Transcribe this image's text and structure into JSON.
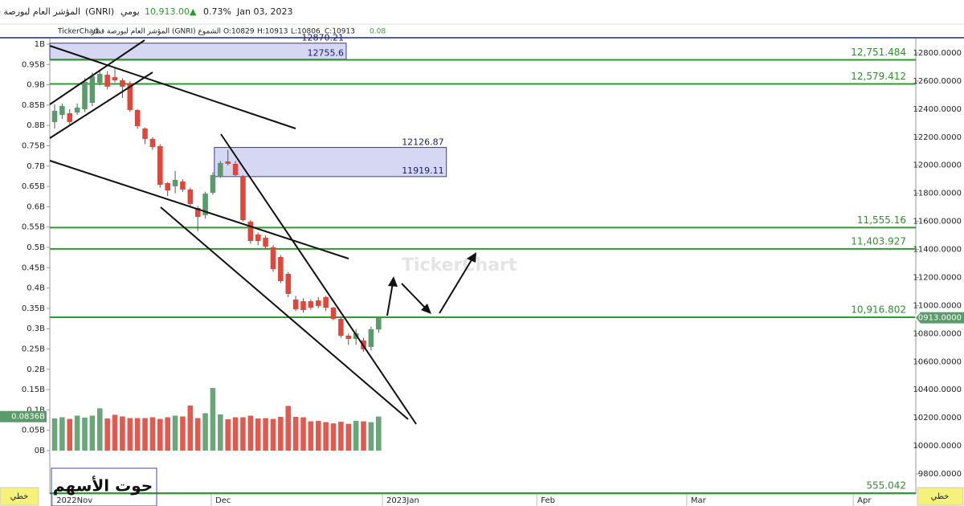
{
  "header": {
    "name": "المؤشر العام لبورصة قطر",
    "symbol": "(GNRI)",
    "period": "يومي",
    "price": "10,913.00",
    "arrow": "▲",
    "change": "0.73%",
    "date": "Jan 03, 2023"
  },
  "legend": {
    "brand": "TickerChart",
    "title": "المؤشر العام لبورصة قطر (GNRI) الشموع",
    "open": "O:10829",
    "high": "H:10913",
    "low": "L:10806",
    "close": "C:10913",
    "extra": "0.08"
  },
  "chart_data": {
    "type": "candlestick",
    "categories": [
      null,
      null,
      null,
      null,
      null,
      null,
      null,
      null,
      null,
      null,
      null,
      null,
      null,
      null,
      null,
      null,
      null,
      null,
      null,
      null,
      null,
      null,
      null,
      null,
      null,
      null,
      null,
      null,
      null,
      null,
      null,
      null,
      null,
      null,
      null,
      null,
      null,
      null,
      null,
      null,
      null,
      null,
      null,
      null
    ],
    "open": [
      12308,
      12359,
      12371,
      12376,
      12399,
      12445,
      12588,
      12645,
      12628,
      12605,
      12582,
      12394,
      12262,
      12188,
      12136,
      11873,
      11850,
      11884,
      11827,
      11695,
      11644,
      11804,
      11919,
      12027,
      12010,
      11919,
      11598,
      11506,
      11483,
      11415,
      11346,
      11226,
      11043,
      11031,
      11031,
      11037,
      11060,
      10985,
      10905,
      10785,
      10762,
      10751,
      10705,
      10829
    ],
    "high": [
      12434,
      12440,
      12400,
      12440,
      12620,
      12660,
      12680,
      12670,
      12700,
      12620,
      12600,
      12400,
      12270,
      12200,
      12150,
      11880,
      11960,
      11900,
      11840,
      11710,
      11810,
      11950,
      12030,
      12110,
      12030,
      11930,
      11610,
      11520,
      11500,
      11430,
      11360,
      11240,
      11070,
      11050,
      11045,
      11060,
      11070,
      10990,
      10920,
      10800,
      10830,
      10770,
      10850,
      10913
    ],
    "low": [
      12262,
      12330,
      12290,
      12360,
      12380,
      12420,
      12570,
      12540,
      12590,
      12480,
      12380,
      12260,
      12150,
      12110,
      11840,
      11780,
      11800,
      11810,
      11700,
      11530,
      11620,
      11790,
      11910,
      12000,
      11920,
      11600,
      11440,
      11430,
      11400,
      11240,
      11160,
      11060,
      10960,
      10950,
      10970,
      10980,
      10960,
      10895,
      10770,
      10720,
      10720,
      10670,
      10680,
      10806
    ],
    "close": [
      12388,
      12422,
      12308,
      12411,
      12594,
      12634,
      12651,
      12560,
      12605,
      12560,
      12394,
      12279,
      12188,
      12130,
      11861,
      11821,
      11896,
      11827,
      11724,
      11632,
      11798,
      11930,
      12016,
      12010,
      11930,
      11609,
      11460,
      11460,
      11420,
      11260,
      11174,
      11083,
      10974,
      10968,
      10985,
      10997,
      10985,
      10905,
      10785,
      10762,
      10802,
      10688,
      10831,
      10913
    ],
    "up_color": "#5b9b6b",
    "down_color": "#e0473a",
    "volume": {
      "axis": "y2",
      "values": [
        0.079,
        0.082,
        0.078,
        0.086,
        0.081,
        0.086,
        0.104,
        0.079,
        0.088,
        0.084,
        0.08,
        0.08,
        0.08,
        0.082,
        0.078,
        0.082,
        0.086,
        0.084,
        0.111,
        0.08,
        0.092,
        0.154,
        0.089,
        0.077,
        0.082,
        0.082,
        0.086,
        0.079,
        0.08,
        0.078,
        0.083,
        0.11,
        0.083,
        0.082,
        0.072,
        0.073,
        0.07,
        0.067,
        0.071,
        0.066,
        0.073,
        0.072,
        0.07,
        0.0836
      ],
      "last_label": "0.0836B"
    },
    "last_price_label": "10913.0000",
    "xlim": [
      -0.64,
      114.3
    ],
    "xticks": [
      {
        "value": -0.3,
        "label": "2022Nov"
      },
      {
        "value": 20.8,
        "label": "Dec"
      },
      {
        "value": 43.5,
        "label": "2023Jan"
      },
      {
        "value": 64,
        "label": "Feb"
      },
      {
        "value": 83.9,
        "label": "Mar"
      },
      {
        "value": 106,
        "label": "Apr"
      }
    ],
    "ylim": [
      9657,
      12903
    ],
    "yticks": [
      {
        "value": 9800,
        "label": "9800.0000"
      },
      {
        "value": 10000,
        "label": "10000.0000"
      },
      {
        "value": 10200,
        "label": "10200.0000"
      },
      {
        "value": 10400,
        "label": "10400.0000"
      },
      {
        "value": 10600,
        "label": "10600.0000"
      },
      {
        "value": 10800,
        "label": "10800.0000"
      },
      {
        "value": 11000,
        "label": "11000.0000"
      },
      {
        "value": 11200,
        "label": "11200.0000"
      },
      {
        "value": 11400,
        "label": "11400.0000"
      },
      {
        "value": 11600,
        "label": "11600.0000"
      },
      {
        "value": 11800,
        "label": "11800.0000"
      },
      {
        "value": 12000,
        "label": "12000.0000"
      },
      {
        "value": 12200,
        "label": "12200.0000"
      },
      {
        "value": 12400,
        "label": "12400.0000"
      },
      {
        "value": 12600,
        "label": "12600.0000"
      },
      {
        "value": 12800,
        "label": "12800.0000"
      }
    ],
    "y2lim": [
      -0.1067,
      1.0138
    ],
    "y2ticks": [
      {
        "value": 0,
        "label": "0B"
      },
      {
        "value": 0.05,
        "label": "0.05B"
      },
      {
        "value": 0.1,
        "label": "0.1B"
      },
      {
        "value": 0.15,
        "label": "0.15B"
      },
      {
        "value": 0.2,
        "label": "0.2B"
      },
      {
        "value": 0.25,
        "label": "0.25B"
      },
      {
        "value": 0.3,
        "label": "0.3B"
      },
      {
        "value": 0.35,
        "label": "0.35B"
      },
      {
        "value": 0.4,
        "label": "0.4B"
      },
      {
        "value": 0.45,
        "label": "0.45B"
      },
      {
        "value": 0.5,
        "label": "0.5B"
      },
      {
        "value": 0.55,
        "label": "0.55B"
      },
      {
        "value": 0.6,
        "label": "0.6B"
      },
      {
        "value": 0.65,
        "label": "0.65B"
      },
      {
        "value": 0.7,
        "label": "0.7B"
      },
      {
        "value": 0.75,
        "label": "0.75B"
      },
      {
        "value": 0.8,
        "label": "0.8B"
      },
      {
        "value": 0.85,
        "label": "0.85B"
      },
      {
        "value": 0.9,
        "label": "0.9B"
      },
      {
        "value": 0.95,
        "label": "0.95B"
      },
      {
        "value": 1,
        "label": "1B"
      }
    ],
    "levels": [
      {
        "value": 12751.484,
        "label": "12,751.484"
      },
      {
        "value": 12579.412,
        "label": "12,579.412"
      },
      {
        "value": 11555.16,
        "label": "11,555.16"
      },
      {
        "value": 11403.927,
        "label": "11,403.927"
      },
      {
        "value": 10916.802,
        "label": "10,916.802"
      },
      {
        "value": 555.042,
        "label": "555.042"
      }
    ],
    "level_color": "#2f9a2f",
    "zones": [
      {
        "top": 12870.21,
        "bottom": 12755.6,
        "from": -0.64,
        "to": 38.7
      },
      {
        "top": 12126.87,
        "bottom": 11919.11,
        "from": 21.2,
        "to": 52
      }
    ],
    "zone_color": "#c8caee",
    "mode": "خطي",
    "watermark": "TickerChart",
    "signature": "حوت الأسهم"
  }
}
